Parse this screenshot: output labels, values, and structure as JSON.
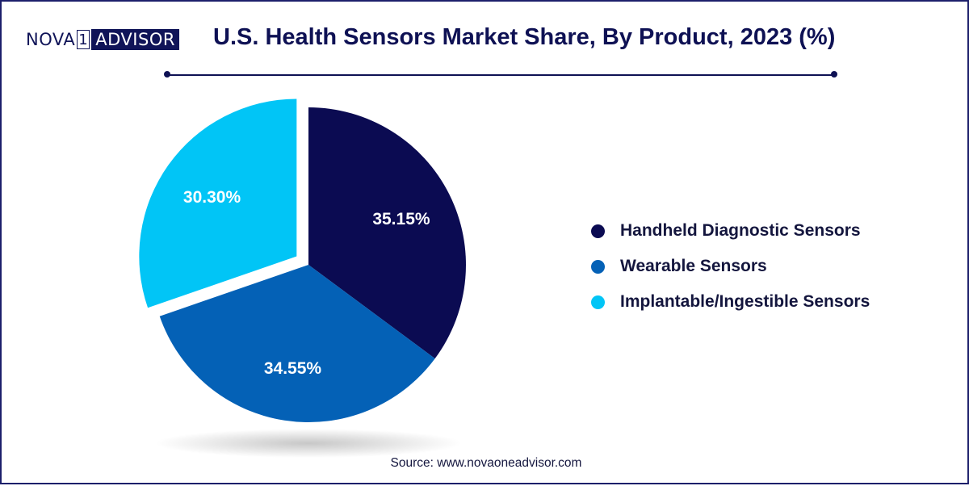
{
  "logo": {
    "part1": "NOVA",
    "part2": "1",
    "part3": "ADVISOR"
  },
  "title": "U.S. Health Sensors Market Share, By Product, 2023 (%)",
  "source": "Source: www.novaoneadvisor.com",
  "colors": {
    "navy": "#0b0b52",
    "blue": "#0461b6",
    "cyan": "#01c5f6",
    "title": "#0e1154"
  },
  "chart_data": {
    "type": "pie",
    "title": "U.S. Health Sensors Market Share, By Product, 2023 (%)",
    "categories": [
      "Handheld Diagnostic Sensors",
      "Wearable Sensors",
      "Implantable/Ingestible Sensors"
    ],
    "values": [
      35.15,
      34.55,
      30.3
    ],
    "labels": [
      "35.15%",
      "34.55%",
      "30.30%"
    ],
    "colors": [
      "#0b0b52",
      "#0461b6",
      "#01c5f6"
    ],
    "exploded": [
      false,
      false,
      true
    ],
    "legend_position": "right"
  },
  "legend": [
    {
      "label": "Handheld Diagnostic Sensors",
      "color": "#0b0b52"
    },
    {
      "label": "Wearable Sensors",
      "color": "#0461b6"
    },
    {
      "label": "Implantable/Ingestible Sensors",
      "color": "#01c5f6"
    }
  ]
}
